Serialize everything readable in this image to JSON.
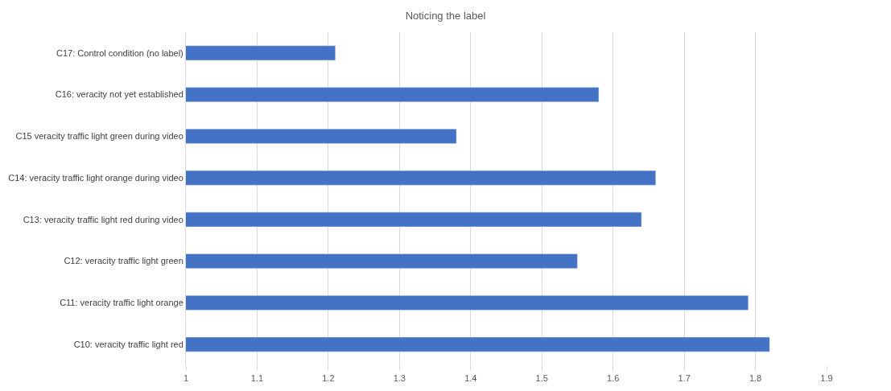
{
  "chart_data": {
    "type": "bar",
    "orientation": "horizontal",
    "title": "Noticing the label",
    "categories": [
      "C17: Control condition (no label)",
      "C16: veracity not yet established",
      "C15 veracity traffic light green during video",
      "C14: veracity traffic light orange during video",
      "C13: veracity traffic light red during video",
      "C12: veracity traffic light green",
      "C11: veracity traffic light orange",
      "C10: veracity traffic light red"
    ],
    "values": [
      1.21,
      1.58,
      1.38,
      1.66,
      1.64,
      1.55,
      1.79,
      1.82
    ],
    "color": "#4472c4",
    "xlim": [
      1,
      1.9
    ],
    "xticks": [
      1,
      1.1,
      1.2,
      1.3,
      1.4,
      1.5,
      1.6,
      1.7,
      1.8,
      1.9
    ],
    "grid": "x"
  }
}
